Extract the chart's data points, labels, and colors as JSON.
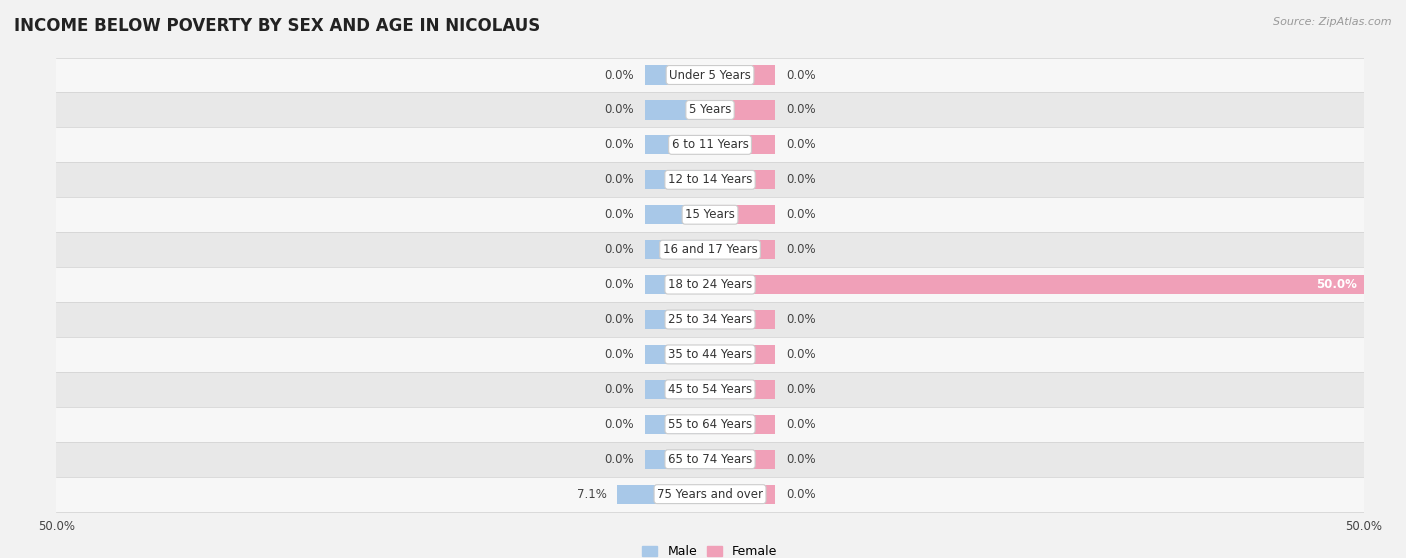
{
  "title": "INCOME BELOW POVERTY BY SEX AND AGE IN NICOLAUS",
  "source": "Source: ZipAtlas.com",
  "categories": [
    "Under 5 Years",
    "5 Years",
    "6 to 11 Years",
    "12 to 14 Years",
    "15 Years",
    "16 and 17 Years",
    "18 to 24 Years",
    "25 to 34 Years",
    "35 to 44 Years",
    "45 to 54 Years",
    "55 to 64 Years",
    "65 to 74 Years",
    "75 Years and over"
  ],
  "male_values": [
    0.0,
    0.0,
    0.0,
    0.0,
    0.0,
    0.0,
    0.0,
    0.0,
    0.0,
    0.0,
    0.0,
    0.0,
    7.1
  ],
  "female_values": [
    0.0,
    0.0,
    0.0,
    0.0,
    0.0,
    0.0,
    50.0,
    0.0,
    0.0,
    0.0,
    0.0,
    0.0,
    0.0
  ],
  "male_color": "#a8c8e8",
  "female_color": "#f0a0b8",
  "axis_limit": 50.0,
  "stub_size": 5.0,
  "bg_color": "#f2f2f2",
  "row_bg_even": "#f7f7f7",
  "row_bg_odd": "#e8e8e8",
  "legend_male": "Male",
  "legend_female": "Female",
  "title_fontsize": 12,
  "label_fontsize": 8.5,
  "value_fontsize": 8.5,
  "tick_fontsize": 8.5
}
